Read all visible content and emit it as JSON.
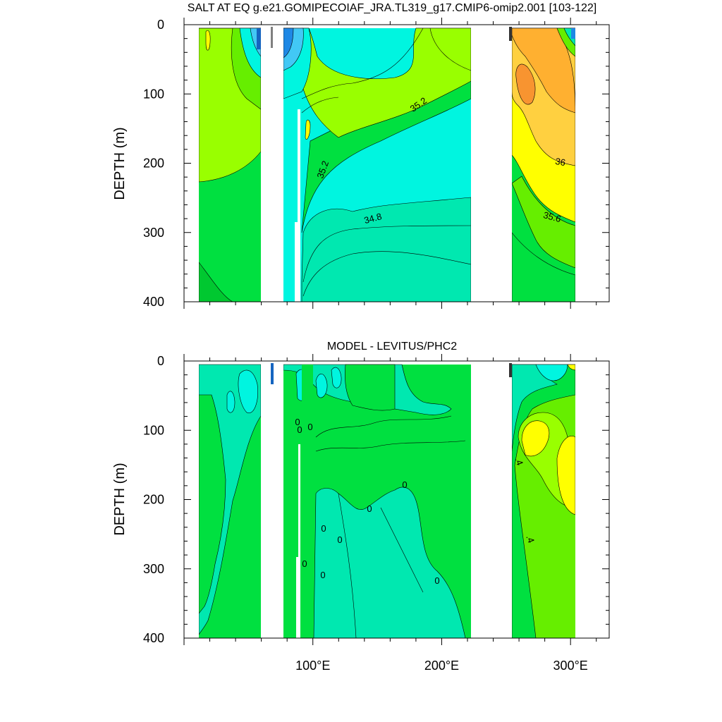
{
  "chart_data": [
    {
      "type": "contour",
      "title": "SALT AT EQ g.e21.GOMIPECOIAF_JRA.TL319_g17.CMIP6-omip2.001 [103-122]",
      "xlabel": "",
      "ylabel": "DEPTH (m)",
      "xlim": [
        0,
        330
      ],
      "ylim": [
        400,
        0
      ],
      "y_ticks": [
        "0",
        "100",
        "200",
        "300",
        "400"
      ],
      "x_ticks": [
        "100°E",
        "200°E",
        "300°E"
      ],
      "contour_labels": [
        "35.2",
        "35.2",
        "34.8",
        "36",
        "35.6"
      ],
      "land_gaps": [
        [
          60,
          78
        ],
        [
          87,
          92
        ],
        [
          222,
          252
        ]
      ],
      "colors": {
        "dark_blue": "#1565c0",
        "blue": "#1e88e5",
        "light_blue": "#42c8f5",
        "cyan": "#00f5e0",
        "aqua": "#00e8b0",
        "green": "#00e040",
        "light_green": "#66ee00",
        "yellow_green": "#99ff00",
        "yellow": "#ffff00",
        "light_orange": "#ffd040",
        "orange": "#ffb030",
        "dark_orange": "#f89430"
      }
    },
    {
      "type": "contour",
      "title": "MODEL - LEVITUS/PHC2",
      "xlabel": "",
      "ylabel": "DEPTH (m)",
      "xlim": [
        0,
        330
      ],
      "ylim": [
        400,
        0
      ],
      "y_ticks": [
        "0",
        "100",
        "200",
        "300",
        "400"
      ],
      "x_ticks": [
        "100°E",
        "200°E",
        "300°E"
      ],
      "contour_labels": [
        "0",
        "0",
        "0",
        "0",
        "0",
        "0",
        "0",
        "0",
        "0",
        "0",
        ".4",
        ".4"
      ],
      "land_gaps": [
        [
          60,
          78
        ],
        [
          87,
          92
        ],
        [
          222,
          252
        ]
      ]
    }
  ]
}
